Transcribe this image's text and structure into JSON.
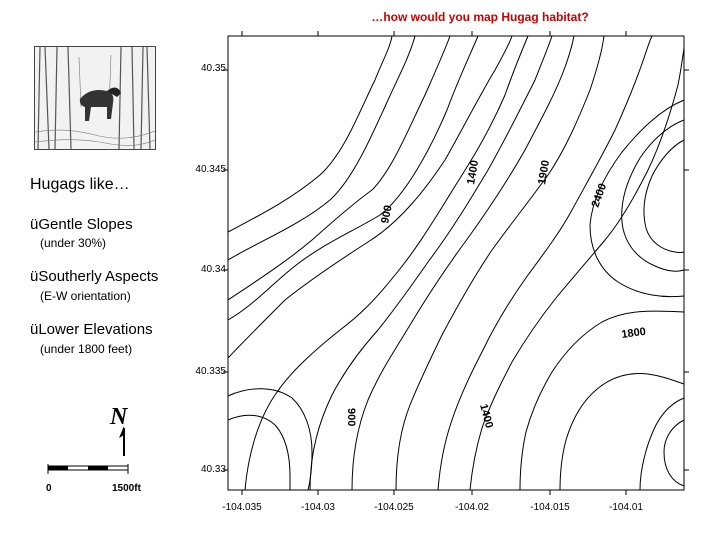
{
  "title": "…how would you map Hugag habitat?",
  "heading": "Hugags like…",
  "bullets": [
    {
      "label": "üGentle Slopes",
      "detail": "(under 30%)"
    },
    {
      "label": "üSoutherly Aspects",
      "detail": "(E-W orientation)"
    },
    {
      "label": "üLower Elevations",
      "detail": "(under 1800 feet)"
    }
  ],
  "map": {
    "y_ticks": [
      "40.35",
      "40.345",
      "40.34",
      "40.335",
      "40.33"
    ],
    "x_ticks": [
      "-104.035",
      "-104.03",
      "-104.025",
      "-104.02",
      "-104.015",
      "-104.01"
    ],
    "contour_labels": [
      "1400",
      "1900",
      "2400",
      "900",
      "1800",
      "900",
      "1400"
    ]
  },
  "scale": {
    "start": "0",
    "end": "1500ft"
  },
  "north_label": "N"
}
